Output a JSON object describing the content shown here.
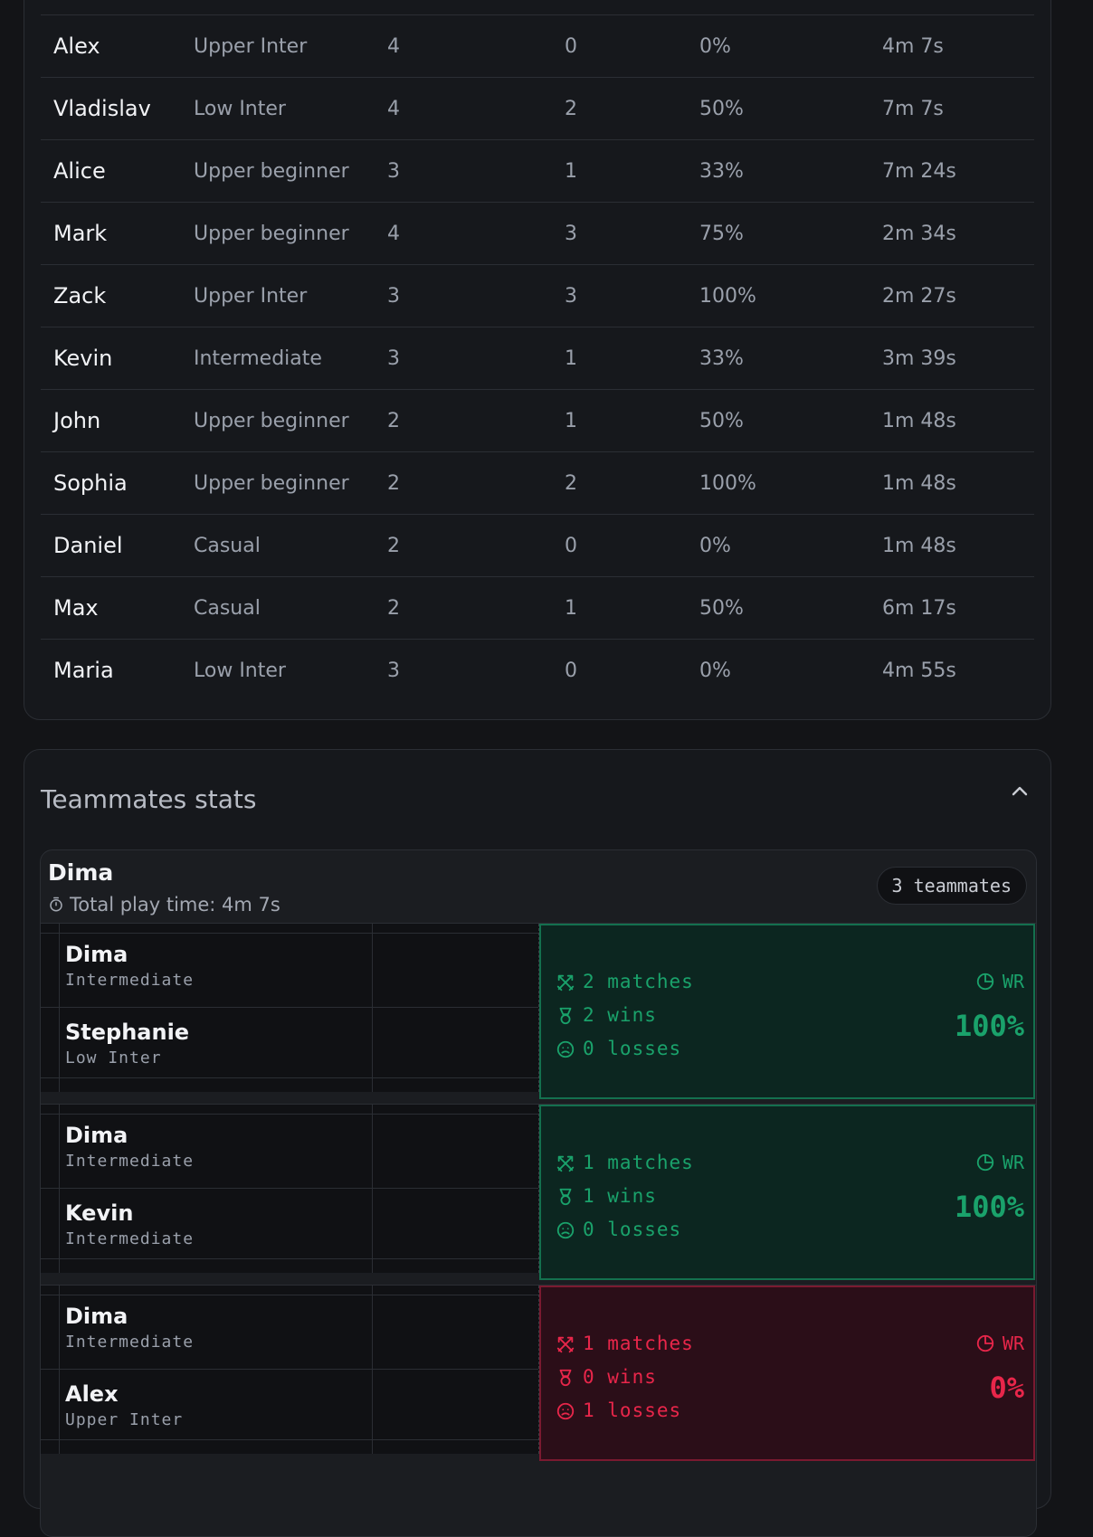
{
  "players_table": {
    "rows": [
      {
        "name": "Alex",
        "level": "Upper Inter",
        "matches": "4",
        "wins": "0",
        "winrate": "0%",
        "time": "4m 7s"
      },
      {
        "name": "Vladislav",
        "level": "Low Inter",
        "matches": "4",
        "wins": "2",
        "winrate": "50%",
        "time": "7m 7s"
      },
      {
        "name": "Alice",
        "level": "Upper beginner",
        "matches": "3",
        "wins": "1",
        "winrate": "33%",
        "time": "7m 24s"
      },
      {
        "name": "Mark",
        "level": "Upper beginner",
        "matches": "4",
        "wins": "3",
        "winrate": "75%",
        "time": "2m 34s"
      },
      {
        "name": "Zack",
        "level": "Upper Inter",
        "matches": "3",
        "wins": "3",
        "winrate": "100%",
        "time": "2m 27s"
      },
      {
        "name": "Kevin",
        "level": "Intermediate",
        "matches": "3",
        "wins": "1",
        "winrate": "33%",
        "time": "3m 39s"
      },
      {
        "name": "John",
        "level": "Upper beginner",
        "matches": "2",
        "wins": "1",
        "winrate": "50%",
        "time": "1m 48s"
      },
      {
        "name": "Sophia",
        "level": "Upper beginner",
        "matches": "2",
        "wins": "2",
        "winrate": "100%",
        "time": "1m 48s"
      },
      {
        "name": "Daniel",
        "level": "Casual",
        "matches": "2",
        "wins": "0",
        "winrate": "0%",
        "time": "1m 48s"
      },
      {
        "name": "Max",
        "level": "Casual",
        "matches": "2",
        "wins": "1",
        "winrate": "50%",
        "time": "6m 17s"
      },
      {
        "name": "Maria",
        "level": "Low Inter",
        "matches": "3",
        "wins": "0",
        "winrate": "0%",
        "time": "4m 55s"
      }
    ]
  },
  "teammates": {
    "title": "Teammates stats",
    "player": {
      "name": "Dima",
      "total_time": "Total play time: 4m 7s",
      "badge": "3 teammates"
    },
    "pairs": [
      {
        "a_name": "Dima",
        "a_level": "Intermediate",
        "b_name": "Stephanie",
        "b_level": "Low Inter",
        "matches": "2 matches",
        "wins": "2 wins",
        "losses": "0 losses",
        "wr_label": "WR",
        "wr": "100%",
        "status": "win"
      },
      {
        "a_name": "Dima",
        "a_level": "Intermediate",
        "b_name": "Kevin",
        "b_level": "Intermediate",
        "matches": "1 matches",
        "wins": "1 wins",
        "losses": "0 losses",
        "wr_label": "WR",
        "wr": "100%",
        "status": "win"
      },
      {
        "a_name": "Dima",
        "a_level": "Intermediate",
        "b_name": "Alex",
        "b_level": "Upper Inter",
        "matches": "1 matches",
        "wins": "0 wins",
        "losses": "1 losses",
        "wr_label": "WR",
        "wr": "0%",
        "status": "loss"
      }
    ]
  },
  "colors": {
    "win": "#1aa26b",
    "loss": "#e8264a",
    "background": "#131417"
  }
}
